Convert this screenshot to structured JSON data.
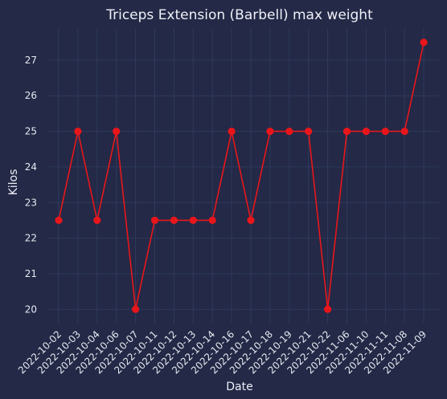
{
  "chart_data": {
    "type": "line",
    "title": "Triceps Extension (Barbell) max weight",
    "xlabel": "Date",
    "ylabel": "Kilos",
    "categories": [
      "2022-10-02",
      "2022-10-03",
      "2022-10-04",
      "2022-10-06",
      "2022-10-07",
      "2022-10-11",
      "2022-10-12",
      "2022-10-13",
      "2022-10-14",
      "2022-10-16",
      "2022-10-17",
      "2022-10-18",
      "2022-10-19",
      "2022-10-21",
      "2022-10-22",
      "2022-11-06",
      "2022-11-10",
      "2022-11-11",
      "2022-11-08",
      "2022-11-09"
    ],
    "series": [
      {
        "values": [
          22.5,
          25,
          22.5,
          25,
          20,
          22.5,
          22.5,
          22.5,
          22.5,
          25,
          22.5,
          25,
          25,
          25,
          20,
          25,
          25,
          25,
          25,
          27.5
        ]
      }
    ],
    "yticks": [
      20,
      21,
      22,
      23,
      24,
      25,
      26,
      27
    ],
    "ylim": [
      19.6,
      27.9
    ],
    "grid": true,
    "colors": {
      "background": "#232946",
      "plot_background": "#232946",
      "grid": "#2f3a5e",
      "line": "#e8161b",
      "text": "#eef0f7"
    }
  }
}
